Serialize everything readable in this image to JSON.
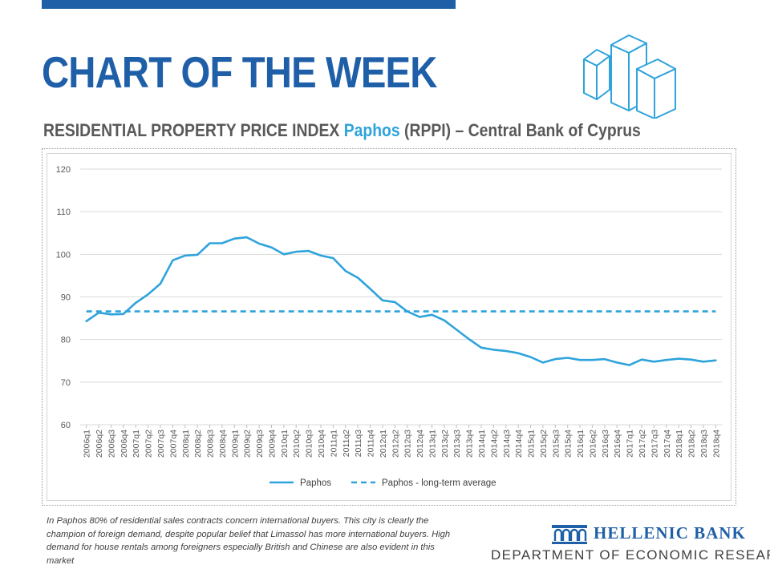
{
  "header": {
    "title": "CHART OF THE WEEK",
    "subtitle_prefix": "RESIDENTIAL PROPERTY PRICE INDEX ",
    "subtitle_city": "Paphos",
    "subtitle_suffix": " (RPPI) – Central Bank of Cyprus"
  },
  "colors": {
    "brand_blue": "#1f5fa8",
    "series_blue": "#2ea3dc",
    "text_grey": "#595959"
  },
  "chart_data": {
    "type": "line",
    "ylim": [
      60,
      120
    ],
    "yticks": [
      60,
      70,
      80,
      90,
      100,
      110,
      120
    ],
    "grid": true,
    "legend_position": "bottom",
    "categories": [
      "2006q1",
      "2006q2",
      "2006q3",
      "2006q4",
      "2007q1",
      "2007q2",
      "2007q3",
      "2007q4",
      "2008q1",
      "2008q2",
      "2008q3",
      "2008q4",
      "2009q1",
      "2009q2",
      "2009q3",
      "2009q4",
      "2010q1",
      "2010q2",
      "2010q3",
      "2010q4",
      "2011q1",
      "2011q2",
      "2011q3",
      "2011q4",
      "2012q1",
      "2012q2",
      "2012q3",
      "2012q4",
      "2013q1",
      "2013q2",
      "2013q3",
      "2013q4",
      "2014q1",
      "2014q2",
      "2014q3",
      "2014q4",
      "2015q1",
      "2015q2",
      "2015q3",
      "2015q4",
      "2016q1",
      "2016q2",
      "2016q3",
      "2016q4",
      "2017q1",
      "2017q2",
      "2017q3",
      "2017q4",
      "2018q1",
      "2018q2",
      "2018q3",
      "2018q4"
    ],
    "series": [
      {
        "name": "Paphos",
        "style": "solid",
        "values": [
          84.3,
          86.3,
          85.9,
          86.0,
          88.6,
          90.6,
          93.1,
          98.6,
          99.7,
          99.9,
          102.6,
          102.6,
          103.7,
          104.0,
          102.5,
          101.6,
          100.0,
          100.6,
          100.8,
          99.7,
          99.1,
          96.1,
          94.5,
          91.9,
          89.2,
          88.8,
          86.6,
          85.3,
          85.8,
          84.5,
          82.3,
          80.1,
          78.1,
          77.6,
          77.3,
          76.8,
          75.9,
          74.6,
          75.4,
          75.7,
          75.2,
          75.2,
          75.4,
          74.6,
          74.0,
          75.3,
          74.8,
          75.2,
          75.5,
          75.3,
          74.8,
          75.1
        ]
      },
      {
        "name": "Paphos - long-term average",
        "style": "dashed",
        "values": [
          86.6,
          86.6,
          86.6,
          86.6,
          86.6,
          86.6,
          86.6,
          86.6,
          86.6,
          86.6,
          86.6,
          86.6,
          86.6,
          86.6,
          86.6,
          86.6,
          86.6,
          86.6,
          86.6,
          86.6,
          86.6,
          86.6,
          86.6,
          86.6,
          86.6,
          86.6,
          86.6,
          86.6,
          86.6,
          86.6,
          86.6,
          86.6,
          86.6,
          86.6,
          86.6,
          86.6,
          86.6,
          86.6,
          86.6,
          86.6,
          86.6,
          86.6,
          86.6,
          86.6,
          86.6,
          86.6,
          86.6,
          86.6,
          86.6,
          86.6,
          86.6,
          86.6
        ]
      }
    ]
  },
  "footer": {
    "note": "In Paphos 80% of residential sales contracts concern international buyers. This city is clearly the champion of foreign demand, despite popular belief that Limassol has more international buyers. High demand for house rentals among foreigners especially British and Chinese are also evident in this market",
    "bank_name": "HELLENIC BANK",
    "department": "DEPARTMENT OF ECONOMIC RESEARCH"
  }
}
